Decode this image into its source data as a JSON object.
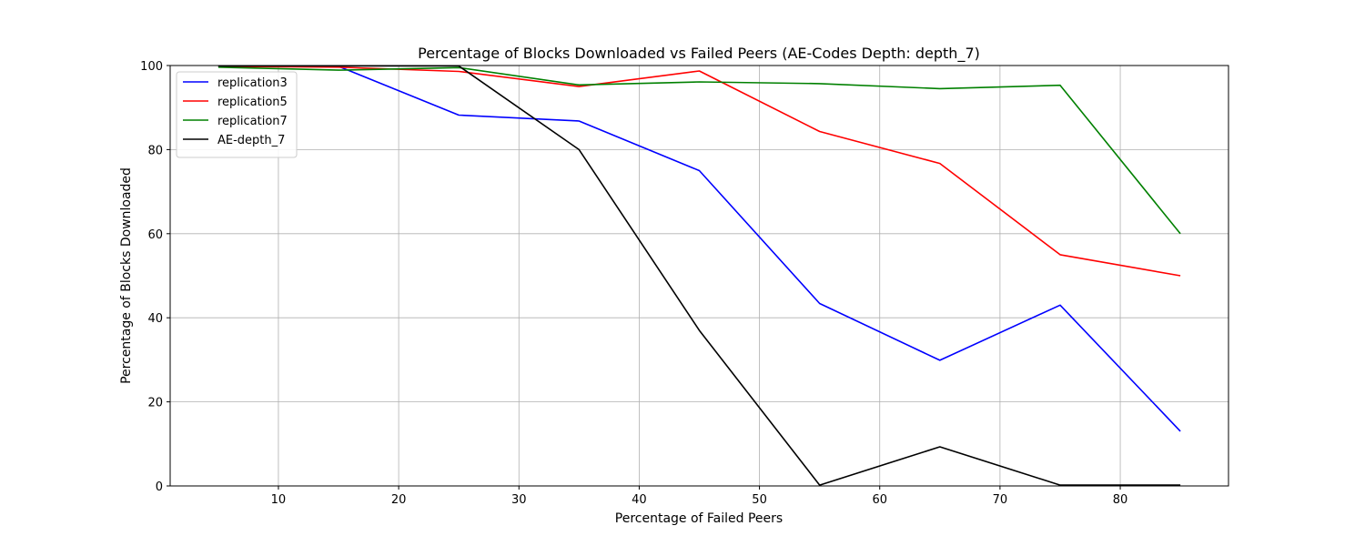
{
  "chart_data": {
    "type": "line",
    "title": "Percentage of Blocks Downloaded vs Failed Peers (AE-Codes Depth: depth_7)",
    "xlabel": "Percentage of Failed Peers",
    "ylabel": "Percentage of Blocks Downloaded",
    "xlim": [
      1,
      89
    ],
    "ylim": [
      0,
      100
    ],
    "xticks": [
      10,
      20,
      30,
      40,
      50,
      60,
      70,
      80
    ],
    "yticks": [
      0,
      20,
      40,
      60,
      80,
      100
    ],
    "grid": true,
    "legend_position": "top-left",
    "x": [
      5,
      15,
      25,
      35,
      45,
      55,
      65,
      75,
      85
    ],
    "series": [
      {
        "name": "replication3",
        "color": "#0000ff",
        "values": [
          99.8,
          99.8,
          88.2,
          86.8,
          75.0,
          43.4,
          29.9,
          43.0,
          13.0
        ]
      },
      {
        "name": "replication5",
        "color": "#ff0000",
        "values": [
          99.8,
          99.6,
          98.6,
          95.0,
          98.7,
          84.3,
          76.7,
          55.0,
          50.0
        ]
      },
      {
        "name": "replication7",
        "color": "#008000",
        "values": [
          99.6,
          98.9,
          99.5,
          95.4,
          96.1,
          95.7,
          94.5,
          95.3,
          60.0
        ]
      },
      {
        "name": "AE-depth_7",
        "color": "#000000",
        "values": [
          99.9,
          99.9,
          99.9,
          80.0,
          37.0,
          0.2,
          9.3,
          0.2,
          0.2
        ]
      }
    ]
  }
}
